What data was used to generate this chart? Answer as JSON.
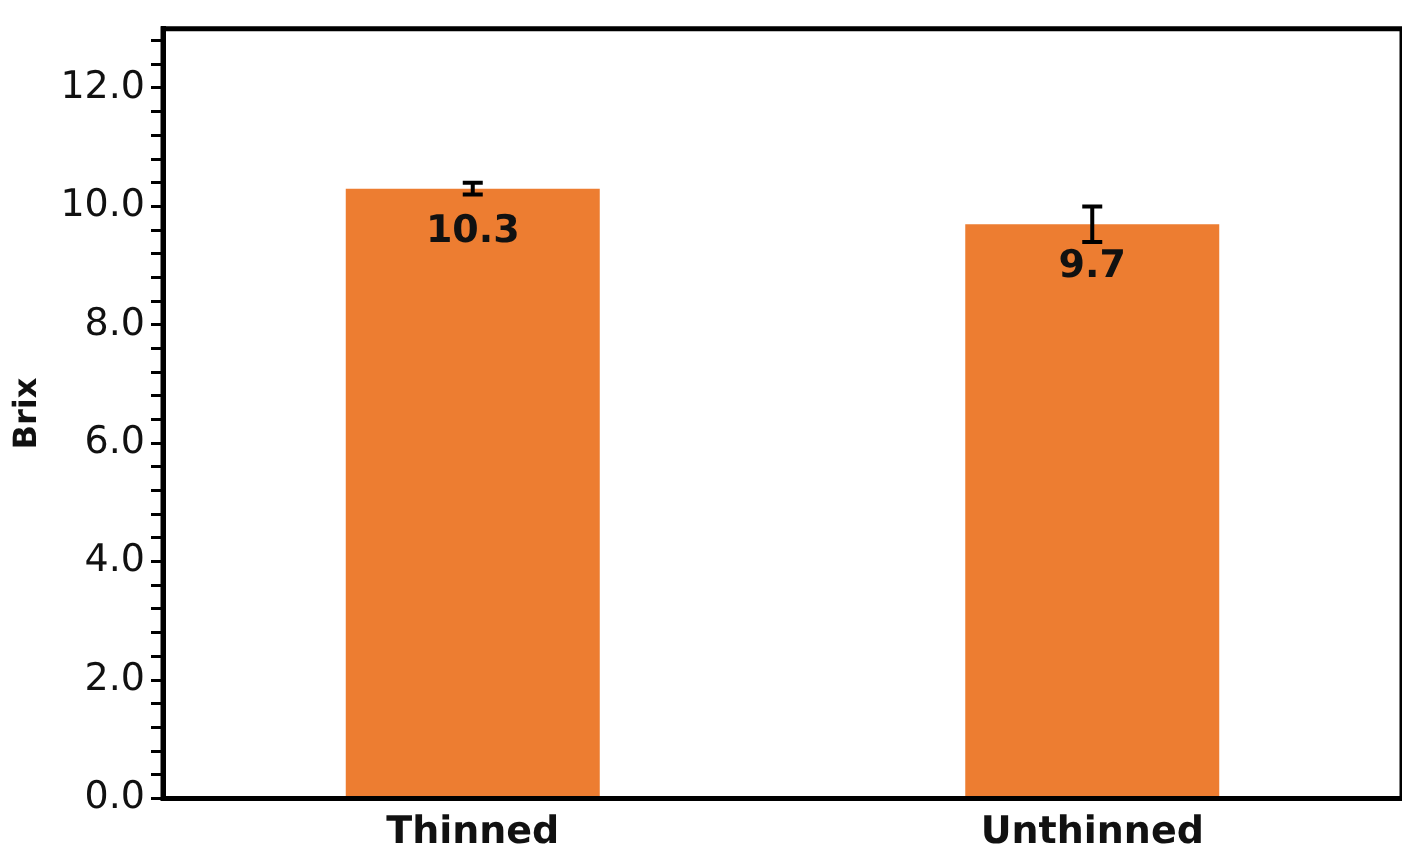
{
  "chart_data": {
    "type": "bar",
    "ylabel": "Brix",
    "categories": [
      "Thinned",
      "Unthinned"
    ],
    "values": [
      10.3,
      9.7
    ],
    "errors": [
      0.1,
      0.3
    ],
    "color": "#ed7d31",
    "data_labels": true,
    "grid": false,
    "legend": false,
    "ylim": [
      0,
      13
    ],
    "yticks": [
      {
        "value": 0,
        "label": "0.0"
      },
      {
        "value": 0.4,
        "label": null
      },
      {
        "value": 0.8,
        "label": null
      },
      {
        "value": 1.2,
        "label": null
      },
      {
        "value": 1.6,
        "label": null
      },
      {
        "value": 2,
        "label": "2.0"
      },
      {
        "value": 2.4,
        "label": null
      },
      {
        "value": 2.8,
        "label": null
      },
      {
        "value": 3.2,
        "label": null
      },
      {
        "value": 3.6,
        "label": null
      },
      {
        "value": 4,
        "label": "4.0"
      },
      {
        "value": 4.4,
        "label": null
      },
      {
        "value": 4.8,
        "label": null
      },
      {
        "value": 5.2,
        "label": null
      },
      {
        "value": 5.6,
        "label": null
      },
      {
        "value": 6,
        "label": "6.0"
      },
      {
        "value": 6.4,
        "label": null
      },
      {
        "value": 6.8,
        "label": null
      },
      {
        "value": 7.2,
        "label": null
      },
      {
        "value": 7.6,
        "label": null
      },
      {
        "value": 8,
        "label": "8.0"
      },
      {
        "value": 8.4,
        "label": null
      },
      {
        "value": 8.8,
        "label": null
      },
      {
        "value": 9.2,
        "label": null
      },
      {
        "value": 9.6,
        "label": null
      },
      {
        "value": 10,
        "label": "10.0"
      },
      {
        "value": 10.4,
        "label": null
      },
      {
        "value": 10.8,
        "label": null
      },
      {
        "value": 11.2,
        "label": null
      },
      {
        "value": 11.6,
        "label": null
      },
      {
        "value": 12,
        "label": "12.0"
      },
      {
        "value": 12.4,
        "label": null
      },
      {
        "value": 12.8,
        "label": null
      }
    ]
  }
}
